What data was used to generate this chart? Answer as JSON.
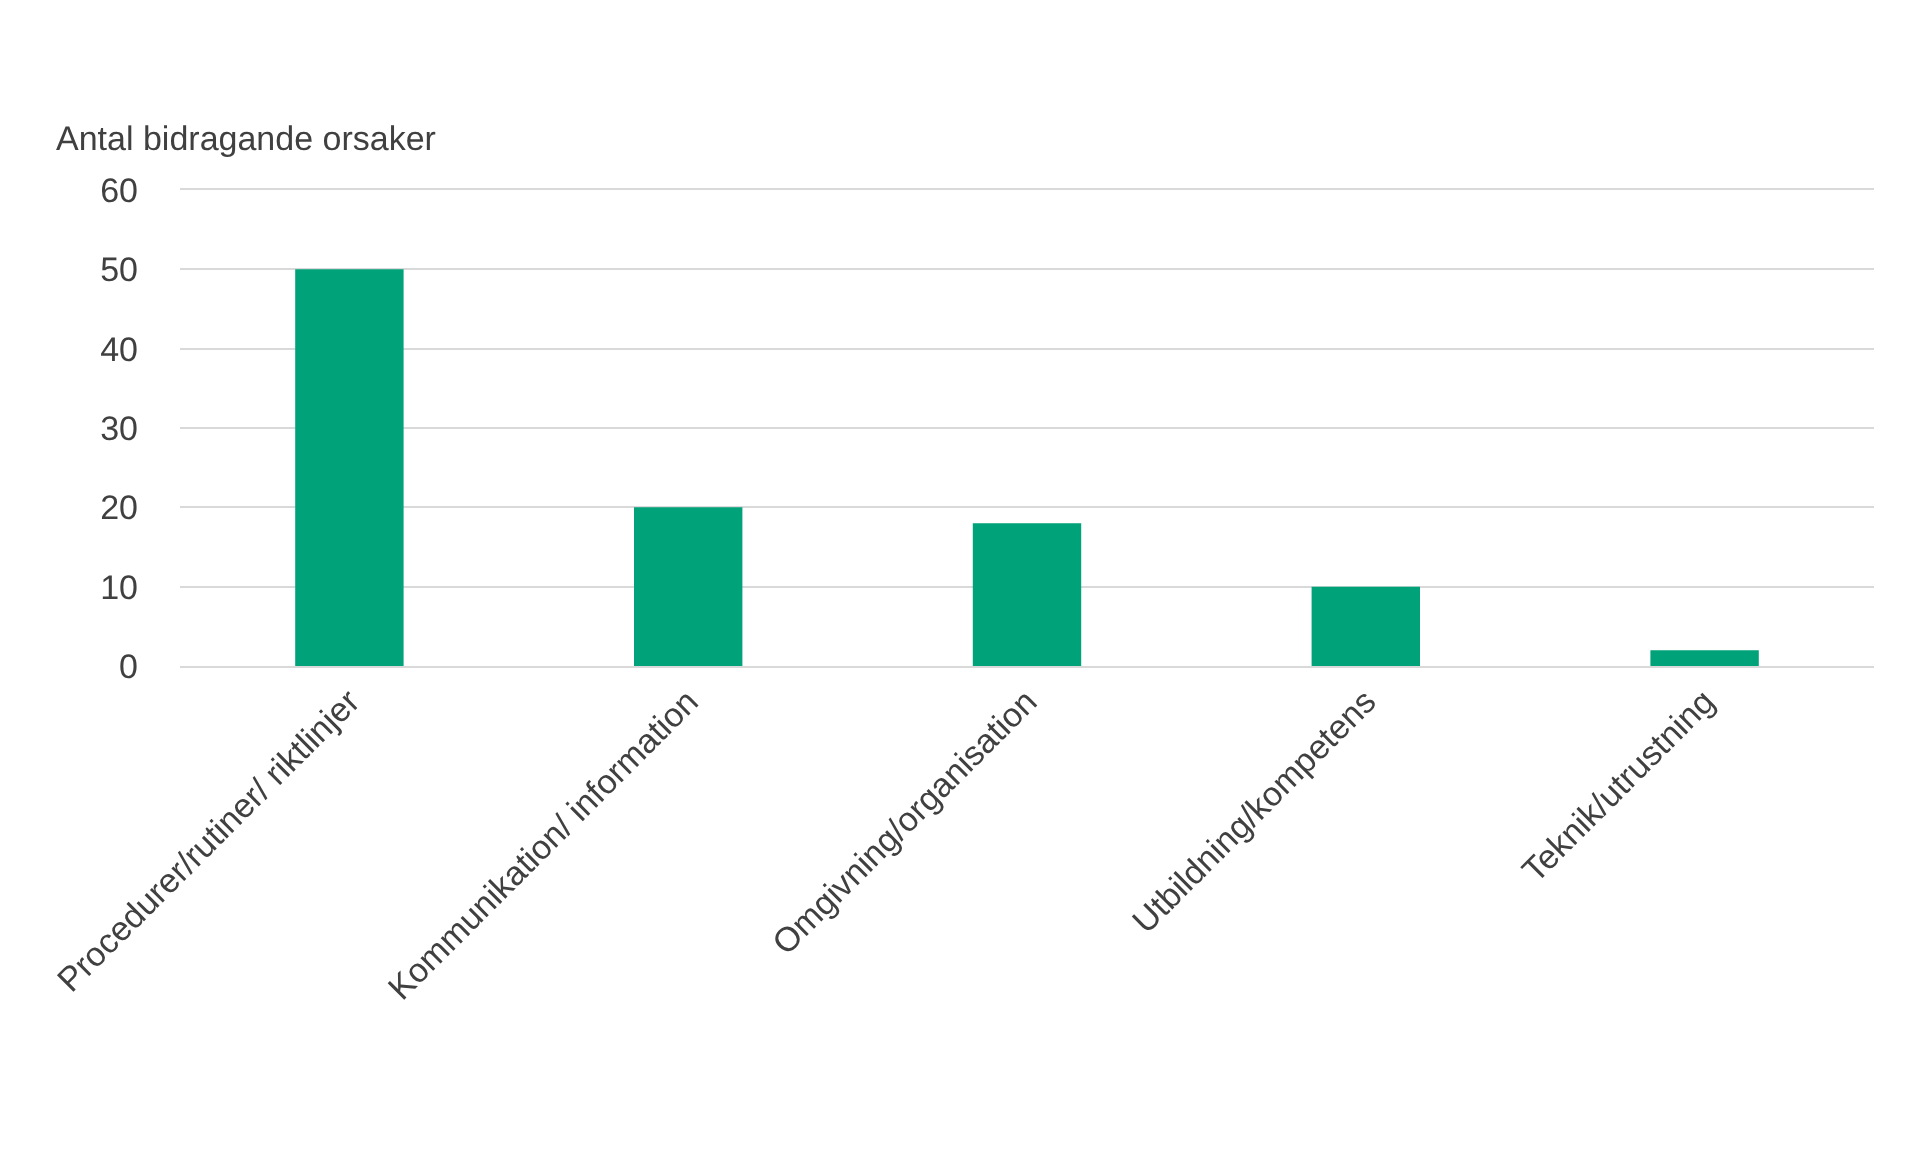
{
  "chart_data": {
    "type": "bar",
    "ylabel": "Antal bidragande orsaker",
    "categories": [
      "Procedurer/rutiner/ riktlinjer",
      "Kommunikation/ information",
      "Omgivning/organisation",
      "Utbildning/kompetens",
      "Teknik/utrustning"
    ],
    "values": [
      50,
      20,
      18,
      10,
      2
    ],
    "color": "#00a27a",
    "ylim": [
      0,
      60
    ],
    "yticks": [
      0,
      10,
      20,
      30,
      40,
      50,
      60
    ],
    "grid": "y"
  }
}
